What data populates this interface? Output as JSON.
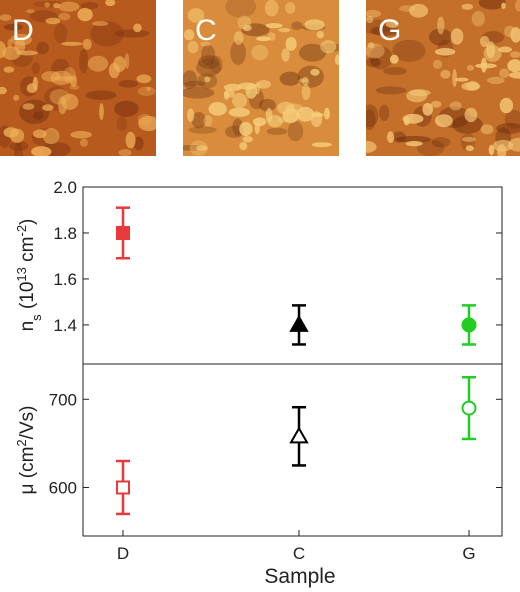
{
  "afm_panels": [
    {
      "label": "D",
      "base": "#b65a1e",
      "bump": "#f0b058",
      "shadow": "#7a3010"
    },
    {
      "label": "C",
      "base": "#d98c3c",
      "bump": "#f6cf7c",
      "shadow": "#7c3f16"
    },
    {
      "label": "G",
      "base": "#c4702a",
      "bump": "#f6c878",
      "shadow": "#6e2c0c"
    }
  ],
  "chart_data": [
    {
      "type": "scatter",
      "panel": "top",
      "ylabel_main": "n",
      "ylabel_sub": "s",
      "ylabel_rest_1": " (10",
      "ylabel_exp_1": "13",
      "ylabel_rest_2": " cm",
      "ylabel_exp_2": "-2",
      "ylabel_close": ")",
      "categories": [
        "D",
        "C",
        "G"
      ],
      "ylim": [
        1.23,
        2.0
      ],
      "yticks": [
        "1.4",
        "1.6",
        "1.8",
        "2.0"
      ],
      "ytick_values": [
        1.4,
        1.6,
        1.8,
        2.0
      ],
      "points": [
        {
          "x": "D",
          "y": 1.8,
          "err": 0.11,
          "marker": "square",
          "filled": true,
          "color": "#e8393c"
        },
        {
          "x": "C",
          "y": 1.4,
          "err": 0.085,
          "marker": "triangle",
          "filled": true,
          "color": "#000000"
        },
        {
          "x": "G",
          "y": 1.4,
          "err": 0.085,
          "marker": "circle",
          "filled": true,
          "color": "#22cc22"
        }
      ]
    },
    {
      "type": "scatter",
      "panel": "bottom",
      "ylabel_main": "μ (cm",
      "ylabel_exp": "2",
      "ylabel_rest": "/Vs)",
      "xlabel": "Sample",
      "categories": [
        "D",
        "C",
        "G"
      ],
      "ylim": [
        545,
        740
      ],
      "yticks": [
        "600",
        "700"
      ],
      "ytick_values": [
        600,
        700
      ],
      "points": [
        {
          "x": "D",
          "y": 600,
          "err": 30,
          "marker": "square",
          "filled": false,
          "color": "#e8393c"
        },
        {
          "x": "C",
          "y": 658,
          "err": 33,
          "marker": "triangle",
          "filled": false,
          "color": "#000000"
        },
        {
          "x": "G",
          "y": 690,
          "err": 35,
          "marker": "circle",
          "filled": false,
          "color": "#22cc22"
        }
      ]
    }
  ]
}
